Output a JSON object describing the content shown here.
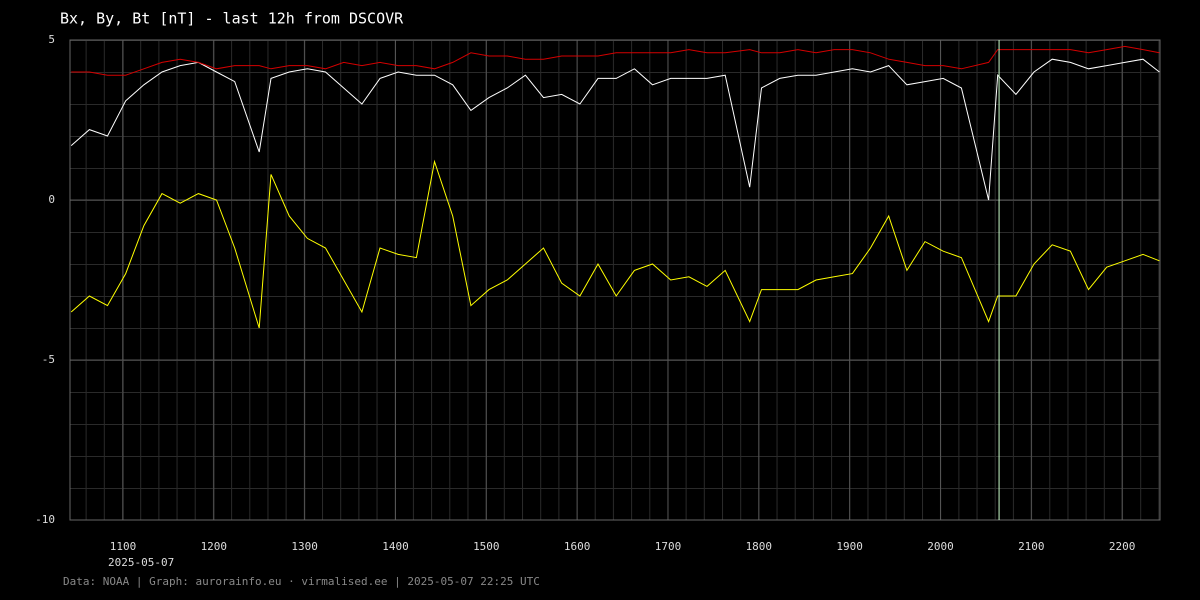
{
  "chart_data": {
    "type": "line",
    "title": "Bx, By, Bt [nT] - last 12h from DSCOVR",
    "date_label": "2025-05-07",
    "footer": "Data: NOAA | Graph: aurorainfo.eu · virmalised.ee | 2025-05-07 22:25 UTC",
    "x": [
      10.43,
      10.63,
      10.83,
      11.03,
      11.23,
      11.43,
      11.63,
      11.83,
      12.03,
      12.23,
      12.5,
      12.63,
      12.83,
      13.03,
      13.23,
      13.43,
      13.63,
      13.83,
      14.03,
      14.23,
      14.43,
      14.63,
      14.83,
      15.03,
      15.23,
      15.43,
      15.63,
      15.83,
      16.03,
      16.23,
      16.43,
      16.63,
      16.83,
      17.03,
      17.23,
      17.43,
      17.63,
      17.9,
      18.03,
      18.23,
      18.43,
      18.63,
      18.83,
      19.03,
      19.23,
      19.43,
      19.63,
      19.83,
      20.03,
      20.23,
      20.53,
      20.63,
      20.83,
      21.03,
      21.23,
      21.43,
      21.63,
      21.83,
      22.03,
      22.23,
      22.41
    ],
    "series": [
      {
        "color": "#d40000",
        "values": [
          4.0,
          4.0,
          3.9,
          3.9,
          4.1,
          4.3,
          4.4,
          4.3,
          4.1,
          4.2,
          4.2,
          4.1,
          4.2,
          4.2,
          4.1,
          4.3,
          4.2,
          4.3,
          4.2,
          4.2,
          4.1,
          4.3,
          4.6,
          4.5,
          4.5,
          4.4,
          4.4,
          4.5,
          4.5,
          4.5,
          4.6,
          4.6,
          4.6,
          4.6,
          4.7,
          4.6,
          4.6,
          4.7,
          4.6,
          4.6,
          4.7,
          4.6,
          4.7,
          4.7,
          4.6,
          4.4,
          4.3,
          4.2,
          4.2,
          4.1,
          4.3,
          4.7,
          4.7,
          4.7,
          4.7,
          4.7,
          4.6,
          4.7,
          4.8,
          4.7,
          4.6
        ]
      },
      {
        "color": "#ffffff",
        "values": [
          1.7,
          2.2,
          2.0,
          3.1,
          3.6,
          4.0,
          4.2,
          4.3,
          4.0,
          3.7,
          1.5,
          3.8,
          4.0,
          4.1,
          4.0,
          3.5,
          3.0,
          3.8,
          4.0,
          3.9,
          3.9,
          3.6,
          2.8,
          3.2,
          3.5,
          3.9,
          3.2,
          3.3,
          3.0,
          3.8,
          3.8,
          4.1,
          3.6,
          3.8,
          3.8,
          3.8,
          3.9,
          0.4,
          3.5,
          3.8,
          3.9,
          3.9,
          4.0,
          4.1,
          4.0,
          4.2,
          3.6,
          3.7,
          3.8,
          3.5,
          0.0,
          3.9,
          3.3,
          4.0,
          4.4,
          4.3,
          4.1,
          4.2,
          4.3,
          4.4,
          4.0
        ]
      },
      {
        "color": "#ffff00",
        "values": [
          -3.5,
          -3.0,
          -3.3,
          -2.3,
          -0.8,
          0.2,
          -0.1,
          0.2,
          0.0,
          -1.5,
          -4.0,
          0.8,
          -0.5,
          -1.2,
          -1.5,
          -2.5,
          -3.5,
          -1.5,
          -1.7,
          -1.8,
          1.2,
          -0.5,
          -3.3,
          -2.8,
          -2.5,
          -2.0,
          -1.5,
          -2.6,
          -3.0,
          -2.0,
          -3.0,
          -2.2,
          -2.0,
          -2.5,
          -2.4,
          -2.7,
          -2.2,
          -3.8,
          -2.8,
          -2.8,
          -2.8,
          -2.5,
          -2.4,
          -2.3,
          -1.5,
          -0.5,
          -2.2,
          -1.3,
          -1.6,
          -1.8,
          -3.8,
          -3.0,
          -3.0,
          -2.0,
          -1.4,
          -1.6,
          -2.8,
          -2.1,
          -1.9,
          -1.7,
          -1.9
        ]
      }
    ],
    "vline": {
      "x": 20.645,
      "color": "#ccffcc"
    },
    "xlim": [
      10.4167,
      22.4167
    ],
    "xticks": [
      {
        "value": 11,
        "label": "1100"
      },
      {
        "value": 12,
        "label": "1200"
      },
      {
        "value": 13,
        "label": "1300"
      },
      {
        "value": 14,
        "label": "1400"
      },
      {
        "value": 15,
        "label": "1500"
      },
      {
        "value": 16,
        "label": "1600"
      },
      {
        "value": 17,
        "label": "1700"
      },
      {
        "value": 18,
        "label": "1800"
      },
      {
        "value": 19,
        "label": "1900"
      },
      {
        "value": 20,
        "label": "2000"
      },
      {
        "value": 21,
        "label": "2100"
      },
      {
        "value": 22,
        "label": "2200"
      }
    ],
    "ylim": [
      -10,
      5
    ],
    "yticks": [
      -10,
      -5,
      0,
      5
    ],
    "grid": true
  }
}
